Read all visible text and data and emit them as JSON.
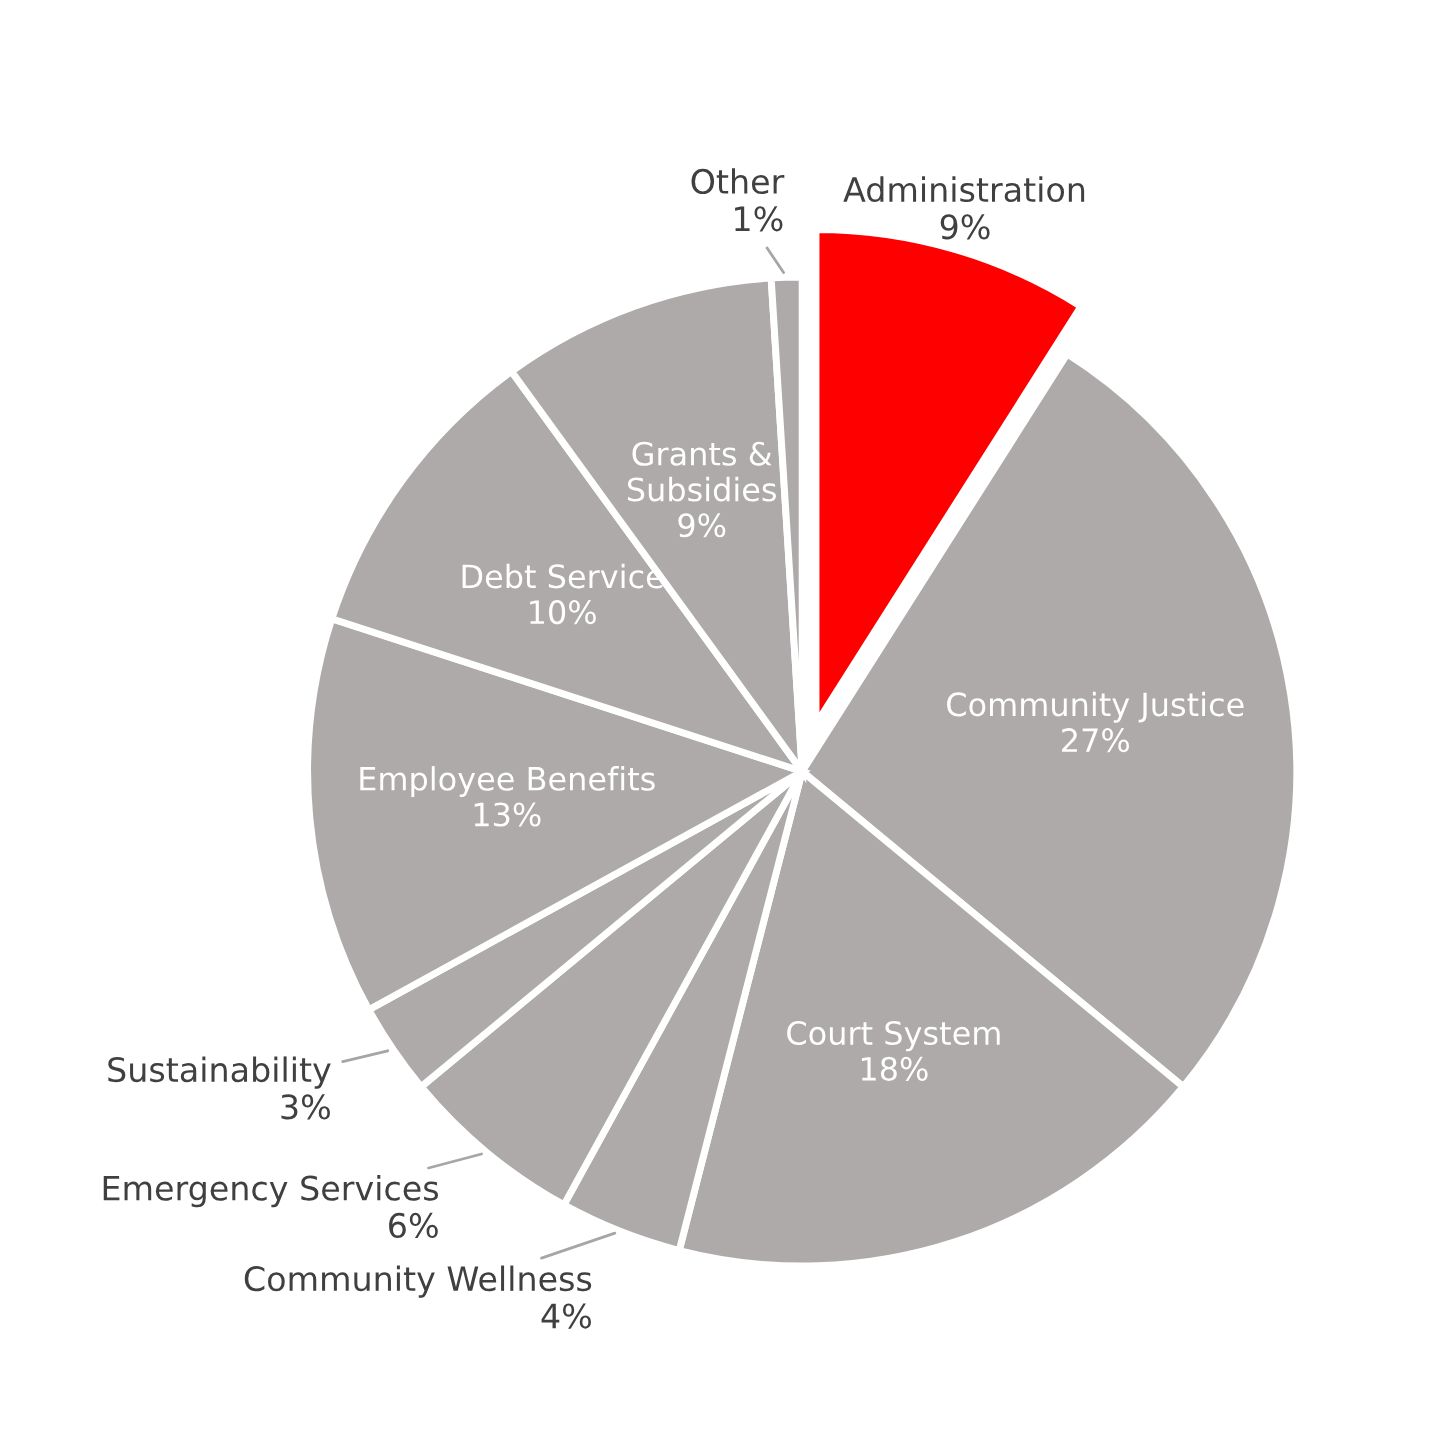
{
  "chart_data": {
    "type": "pie",
    "categories": [
      "Administration",
      "Community Justice",
      "Court System",
      "Community Wellness",
      "Emergency Services",
      "Sustainability",
      "Employee Benefits",
      "Debt Service",
      "Grants & Subsidies",
      "Other"
    ],
    "values": [
      9,
      27,
      18,
      4,
      6,
      3,
      13,
      10,
      9,
      1
    ],
    "value_labels": [
      "9%",
      "27%",
      "18%",
      "4%",
      "6%",
      "3%",
      "13%",
      "10%",
      "9%",
      "1%"
    ],
    "colors": [
      "#ff0000",
      "#aeaaaa",
      "#aeaaaa",
      "#aeaaaa",
      "#aeaaaa",
      "#aeaaaa",
      "#aeaaaa",
      "#aeaaaa",
      "#aeaaaa",
      "#aeaaaa"
    ]
  }
}
